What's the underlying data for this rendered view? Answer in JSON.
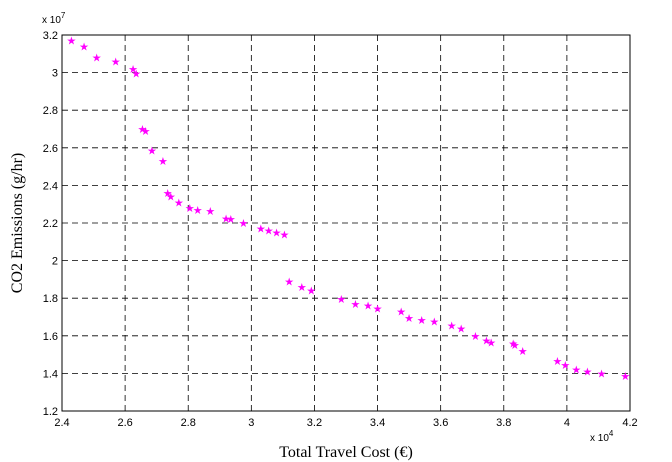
{
  "chart_data": {
    "type": "scatter",
    "xlabel": "Total Travel Cost (€)",
    "ylabel": "CO2 Emissions (g/hr)",
    "x_exponent_label": "x 10",
    "x_exponent_power": "4",
    "y_exponent_label": "x 10",
    "y_exponent_power": "7",
    "xlim": [
      2.4,
      4.2
    ],
    "ylim": [
      1.2,
      3.2
    ],
    "x_ticks": [
      "2.4",
      "2.6",
      "2.8",
      "3",
      "3.2",
      "3.4",
      "3.6",
      "3.8",
      "4",
      "4.2"
    ],
    "y_ticks": [
      "1.2",
      "1.4",
      "1.6",
      "1.8",
      "2",
      "2.2",
      "2.4",
      "2.6",
      "2.8",
      "3",
      "3.2"
    ],
    "grid": true,
    "marker": "pentagram",
    "color": "#ff00ff",
    "series": [
      {
        "points": [
          [
            2.43,
            3.17
          ],
          [
            2.47,
            3.14
          ],
          [
            2.51,
            3.08
          ],
          [
            2.57,
            3.06
          ],
          [
            2.625,
            3.02
          ],
          [
            2.635,
            2.995
          ],
          [
            2.655,
            2.7
          ],
          [
            2.665,
            2.69
          ],
          [
            2.685,
            2.585
          ],
          [
            2.72,
            2.53
          ],
          [
            2.735,
            2.36
          ],
          [
            2.745,
            2.34
          ],
          [
            2.77,
            2.31
          ],
          [
            2.805,
            2.28
          ],
          [
            2.83,
            2.27
          ],
          [
            2.87,
            2.265
          ],
          [
            2.92,
            2.225
          ],
          [
            2.935,
            2.22
          ],
          [
            2.975,
            2.2
          ],
          [
            3.03,
            2.17
          ],
          [
            3.055,
            2.16
          ],
          [
            3.08,
            2.15
          ],
          [
            3.105,
            2.14
          ],
          [
            3.12,
            1.89
          ],
          [
            3.16,
            1.86
          ],
          [
            3.19,
            1.84
          ],
          [
            3.285,
            1.795
          ],
          [
            3.33,
            1.77
          ],
          [
            3.37,
            1.76
          ],
          [
            3.4,
            1.745
          ],
          [
            3.475,
            1.73
          ],
          [
            3.5,
            1.695
          ],
          [
            3.54,
            1.685
          ],
          [
            3.58,
            1.675
          ],
          [
            3.635,
            1.655
          ],
          [
            3.665,
            1.64
          ],
          [
            3.71,
            1.6
          ],
          [
            3.745,
            1.575
          ],
          [
            3.76,
            1.565
          ],
          [
            3.83,
            1.56
          ],
          [
            3.835,
            1.55
          ],
          [
            3.86,
            1.52
          ],
          [
            3.97,
            1.465
          ],
          [
            3.995,
            1.445
          ],
          [
            4.03,
            1.42
          ],
          [
            4.065,
            1.41
          ],
          [
            4.11,
            1.4
          ],
          [
            4.185,
            1.385
          ]
        ]
      }
    ]
  }
}
